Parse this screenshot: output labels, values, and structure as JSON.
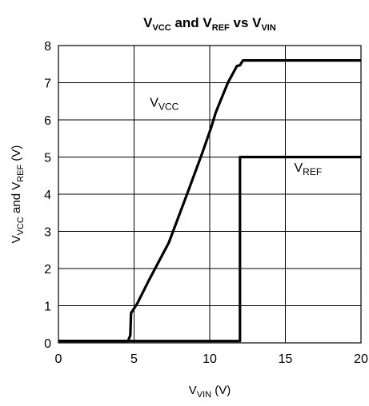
{
  "chart_data": {
    "type": "line",
    "title": {
      "parts": [
        {
          "text": "V",
          "sub": "VCC"
        },
        {
          "text": " and V",
          "sub": "REF"
        },
        {
          "text": " vs V",
          "sub": "VIN"
        }
      ]
    },
    "xlabel": {
      "parts": [
        {
          "text": "V",
          "sub": "VIN"
        },
        {
          "text": " (V)",
          "sub": ""
        }
      ]
    },
    "ylabel": {
      "parts": [
        {
          "text": "V",
          "sub": "VCC"
        },
        {
          "text": " and V",
          "sub": "REF"
        },
        {
          "text": " (V)",
          "sub": ""
        }
      ]
    },
    "xlim": [
      0,
      20
    ],
    "ylim": [
      0,
      8
    ],
    "xticks": [
      "0",
      "5",
      "10",
      "15",
      "20"
    ],
    "yticks": [
      "0",
      "1",
      "2",
      "3",
      "4",
      "5",
      "6",
      "7",
      "8"
    ],
    "grid": true,
    "series": [
      {
        "name": {
          "text": "V",
          "sub": "VCC"
        },
        "x": [
          0,
          4.6,
          4.75,
          4.8,
          5.2,
          6.0,
          7.3,
          8.5,
          9.5,
          10.1,
          10.4,
          11.2,
          11.8,
          12.0,
          12.2,
          12.5,
          20
        ],
        "y": [
          0.05,
          0.05,
          0.2,
          0.8,
          1.05,
          1.7,
          2.7,
          4.0,
          5.1,
          5.8,
          6.2,
          7.0,
          7.45,
          7.47,
          7.6,
          7.6,
          7.6
        ]
      },
      {
        "name": {
          "text": "V",
          "sub": "REF"
        },
        "x": [
          0,
          12.0,
          12.0,
          20
        ],
        "y": [
          0.05,
          0.05,
          5.0,
          5.0
        ]
      }
    ],
    "annotations": [
      {
        "series": 0,
        "x": 7.0,
        "y": 6.35
      },
      {
        "series": 1,
        "x": 16.5,
        "y": 4.6
      }
    ]
  }
}
